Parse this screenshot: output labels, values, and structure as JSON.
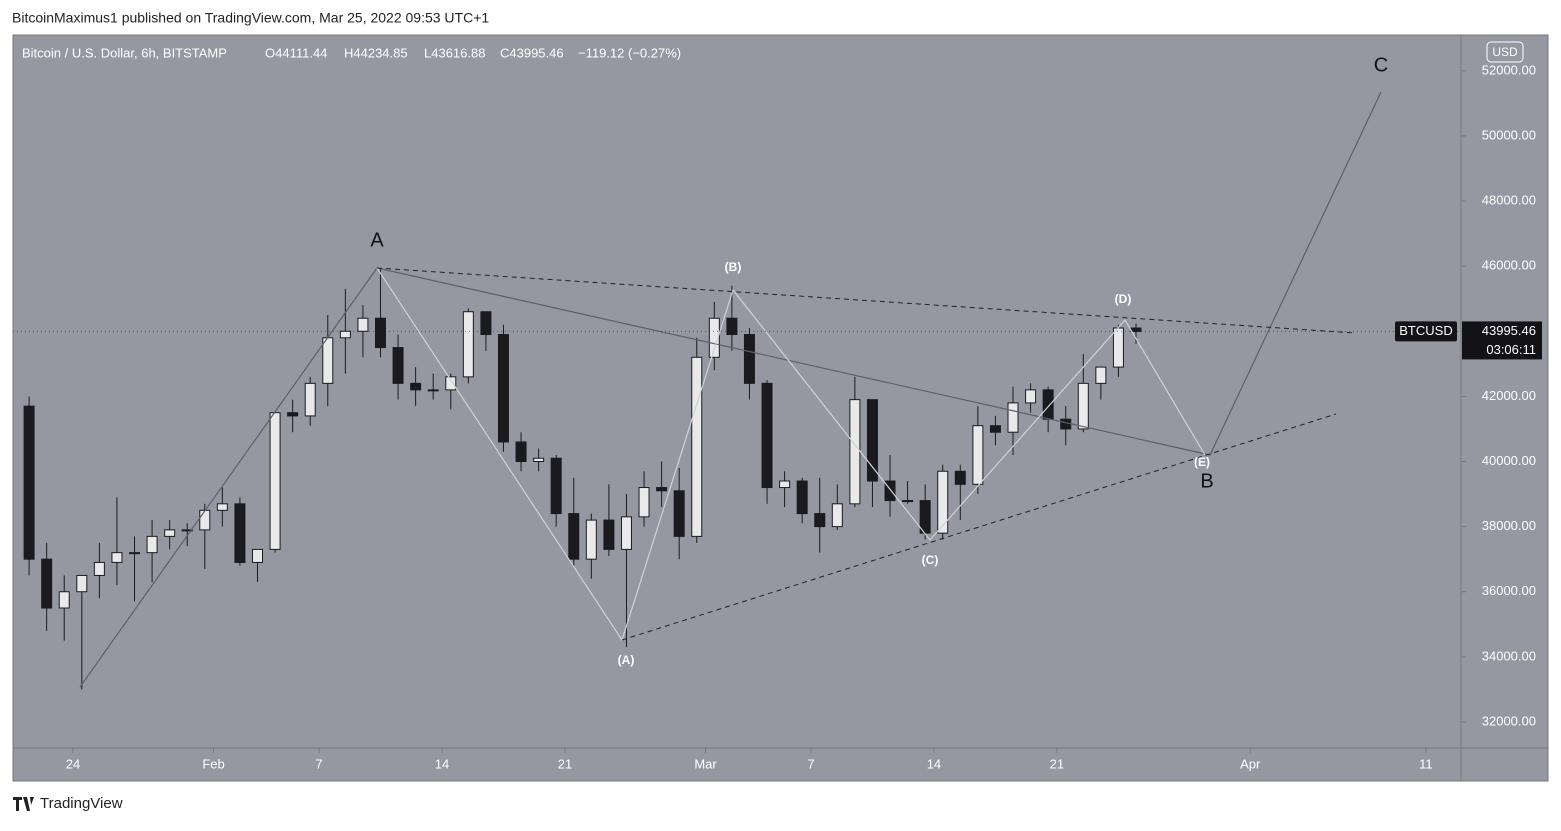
{
  "header": {
    "publisher": "BitcoinMaximus1 published on TradingView.com, Mar 25, 2022 09:53 UTC+1",
    "brand": "TradingView"
  },
  "chart_data": {
    "type": "candlestick",
    "title": "Bitcoin / U.S. Dollar, 6h, BITSTAMP",
    "ohlc_legend": {
      "open": "O44111.44",
      "high": "H44234.85",
      "low": "L43616.88",
      "close": "C43995.46",
      "change": "−119.12 (−0.27%)"
    },
    "currency": "USD",
    "x": [
      "Jan 21",
      "Jan 22",
      "Jan 23",
      "Jan 24",
      "Jan 25",
      "Jan 26",
      "Jan 27",
      "Jan 28",
      "Jan 29",
      "Jan 30",
      "Jan 31",
      "Feb 1",
      "Feb 2",
      "Feb 3",
      "Feb 4",
      "Feb 5",
      "Feb 6",
      "Feb 7",
      "Feb 8",
      "Feb 9",
      "Feb 10",
      "Feb 11",
      "Feb 12",
      "Feb 13",
      "Feb 14",
      "Feb 15",
      "Feb 16",
      "Feb 17",
      "Feb 18",
      "Feb 19",
      "Feb 20",
      "Feb 21",
      "Feb 22",
      "Feb 23",
      "Feb 24",
      "Feb 25",
      "Feb 26",
      "Feb 27",
      "Feb 28",
      "Mar 1",
      "Mar 2",
      "Mar 3",
      "Mar 4",
      "Mar 5",
      "Mar 6",
      "Mar 7",
      "Mar 8",
      "Mar 9",
      "Mar 10",
      "Mar 11",
      "Mar 12",
      "Mar 13",
      "Mar 14",
      "Mar 15",
      "Mar 16",
      "Mar 17",
      "Mar 18",
      "Mar 19",
      "Mar 20",
      "Mar 21",
      "Mar 22",
      "Mar 23",
      "Mar 24",
      "Mar 25"
    ],
    "open": [
      41700,
      37000,
      35500,
      36000,
      36500,
      36900,
      37200,
      37200,
      37700,
      37900,
      37900,
      38500,
      38700,
      36900,
      37300,
      41500,
      41400,
      42400,
      43800,
      44000,
      44400,
      43500,
      42400,
      42200,
      42200,
      42600,
      44600,
      43900,
      40600,
      40000,
      40100,
      38400,
      37000,
      38200,
      37300,
      38300,
      39200,
      39100,
      37700,
      43200,
      44400,
      43900,
      42400,
      39200,
      39400,
      38400,
      38000,
      38700,
      41900,
      39400,
      38800,
      38800,
      37800,
      39700,
      39300,
      41100,
      40900,
      41800,
      42200,
      41300,
      41000,
      42400,
      42900,
      44100
    ],
    "high": [
      42000,
      37500,
      36500,
      36500,
      37500,
      38900,
      37700,
      38200,
      38200,
      38100,
      38700,
      39200,
      38900,
      37300,
      41500,
      41900,
      42600,
      44500,
      45300,
      44800,
      45900,
      43900,
      42900,
      42700,
      42700,
      44700,
      44600,
      44200,
      40900,
      40400,
      40200,
      39500,
      38400,
      39300,
      39000,
      39700,
      40000,
      39800,
      43800,
      44900,
      45400,
      44100,
      42500,
      39700,
      39500,
      39500,
      39300,
      42600,
      41900,
      40200,
      39400,
      39300,
      39900,
      39900,
      41700,
      41400,
      42300,
      42400,
      42300,
      41700,
      43300,
      42900,
      44200,
      44234.85
    ],
    "low": [
      36500,
      34800,
      34500,
      33000,
      35800,
      36200,
      35700,
      36300,
      37300,
      37400,
      36700,
      38000,
      36800,
      36300,
      37200,
      40900,
      41100,
      41700,
      42700,
      43200,
      43200,
      41900,
      41700,
      41900,
      41600,
      42400,
      43400,
      40300,
      39700,
      39700,
      38000,
      36800,
      36400,
      37100,
      34300,
      38000,
      38600,
      37000,
      37500,
      42800,
      43400,
      41900,
      38700,
      38600,
      38100,
      37200,
      37900,
      38600,
      38600,
      38300,
      38700,
      37600,
      37600,
      38200,
      39000,
      40500,
      40200,
      41500,
      40900,
      40500,
      40900,
      41900,
      42600,
      43616.88
    ],
    "close": [
      37000,
      35500,
      36000,
      36500,
      36900,
      37200,
      37200,
      37700,
      37900,
      37900,
      38500,
      38700,
      36900,
      37300,
      41500,
      41400,
      42400,
      43800,
      44000,
      44400,
      43500,
      42400,
      42200,
      42200,
      42600,
      44600,
      43900,
      40600,
      40000,
      40100,
      38400,
      37000,
      38200,
      37300,
      38300,
      39200,
      39100,
      37700,
      43200,
      44400,
      43900,
      42400,
      39200,
      39400,
      38400,
      38000,
      38700,
      41900,
      39400,
      38800,
      38800,
      37800,
      39700,
      39300,
      41100,
      40900,
      41800,
      42200,
      41300,
      41000,
      42400,
      42900,
      44100,
      43995.46
    ],
    "up_color": "#e9e9ec",
    "down_color": "#1b1b1f",
    "ylim": [
      31200,
      53100
    ],
    "yticks": [
      {
        "value": 32000,
        "label": "32000.00"
      },
      {
        "value": 34000,
        "label": "34000.00"
      },
      {
        "value": 36000,
        "label": "36000.00"
      },
      {
        "value": 38000,
        "label": "38000.00"
      },
      {
        "value": 40000,
        "label": "40000.00"
      },
      {
        "value": 42000,
        "label": "42000.00"
      },
      {
        "value": 44000,
        "label": "44000.00"
      },
      {
        "value": 46000,
        "label": "46000.00"
      },
      {
        "value": 48000,
        "label": "48000.00"
      },
      {
        "value": 50000,
        "label": "50000.00"
      },
      {
        "value": 52000,
        "label": "52000.00"
      }
    ],
    "xticks": [
      {
        "value": "Jan 24",
        "label": "24"
      },
      {
        "value": "Feb 1",
        "label": "Feb"
      },
      {
        "value": "Feb 7",
        "label": "7"
      },
      {
        "value": "Feb 14",
        "label": "14"
      },
      {
        "value": "Feb 21",
        "label": "21"
      },
      {
        "value": "Mar 1",
        "label": "Mar"
      },
      {
        "value": "Mar 7",
        "label": "7"
      },
      {
        "value": "Mar 14",
        "label": "14"
      },
      {
        "value": "Mar 21",
        "label": "21"
      },
      {
        "value": "Apr 1",
        "label": "Apr"
      },
      {
        "value": "Apr 11",
        "label": "11"
      }
    ],
    "last_price": {
      "symbol": "BTCUSD",
      "price": 43995.46,
      "countdown": "03:06:11"
    },
    "annotations": [
      "A",
      "(B)",
      "(D)",
      "(A)",
      "(C)",
      "(E)",
      "B",
      "C"
    ]
  }
}
